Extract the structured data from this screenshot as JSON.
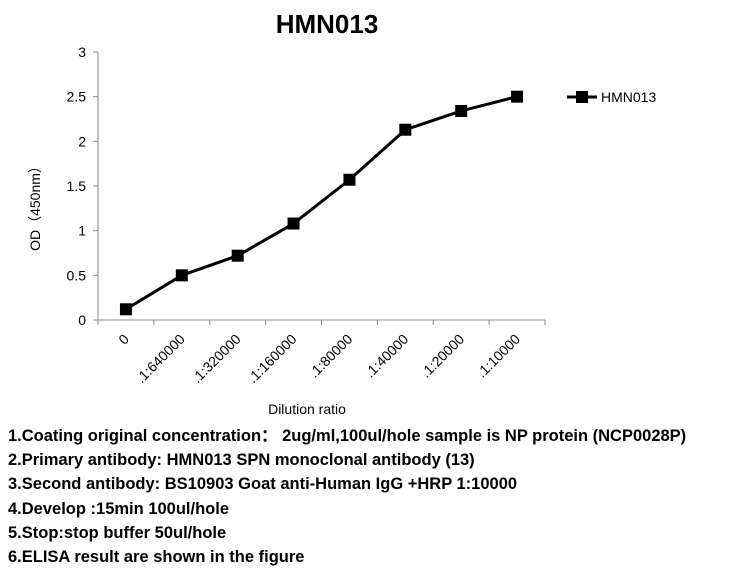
{
  "chart_data": {
    "type": "line",
    "title": "HMN013",
    "xlabel": "Dilution ratio",
    "ylabel": "OD（450nm）",
    "categories": [
      "0",
      ".1:640000",
      ".1:320000",
      ".1:160000",
      ".1:80000",
      ".1:40000",
      ".1:20000",
      ".1:10000"
    ],
    "series": [
      {
        "name": "HMN013",
        "values": [
          0.12,
          0.5,
          0.72,
          1.08,
          1.57,
          2.13,
          2.34,
          2.5
        ]
      }
    ],
    "ylim": [
      0,
      3
    ],
    "yticks": [
      "0",
      "0.5",
      "1",
      "1.5",
      "2",
      "2.5",
      "3"
    ],
    "grid": false,
    "legend": "right",
    "line_color": "#000000",
    "marker": "square"
  },
  "notes": [
    "1.Coating original concentration： 2ug/ml,100ul/hole sample is NP protein (NCP0028P)",
    "2.Primary antibody: HMN013  SPN monoclonal antibody  (13)",
    "3.Second antibody:  BS10903  Goat anti-Human IgG +HRP  1:10000",
    "4.Develop :15min  100ul/hole",
    "5.Stop:stop buffer  50ul/hole",
    "6.ELISA result are shown in the figure"
  ]
}
